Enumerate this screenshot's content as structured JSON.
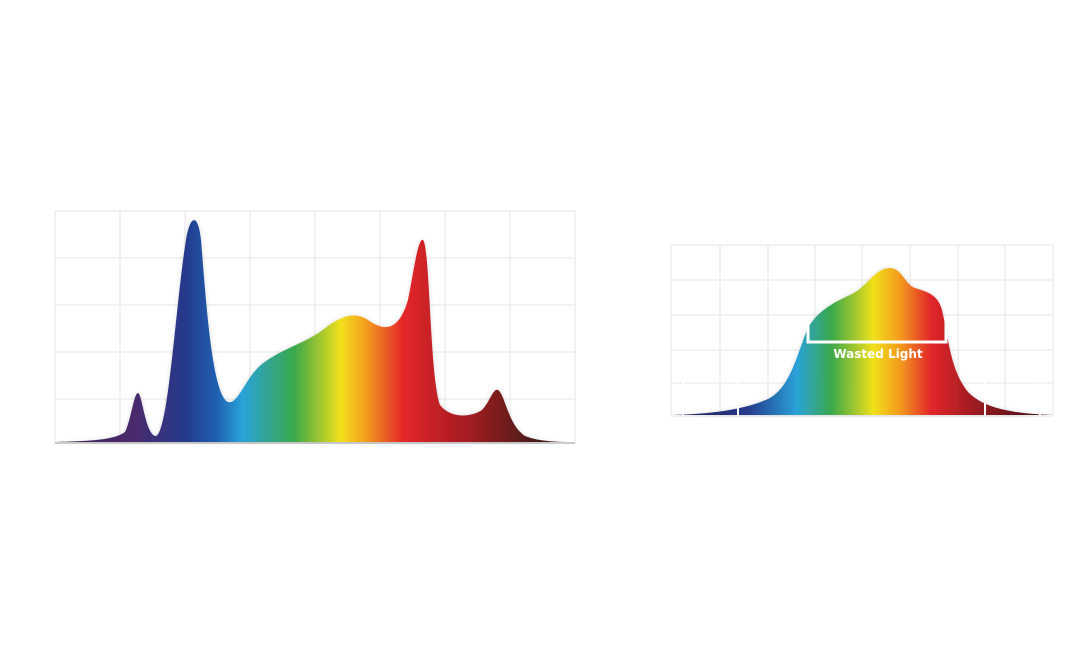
{
  "annotation": {
    "text": "Wasted Light"
  }
}
